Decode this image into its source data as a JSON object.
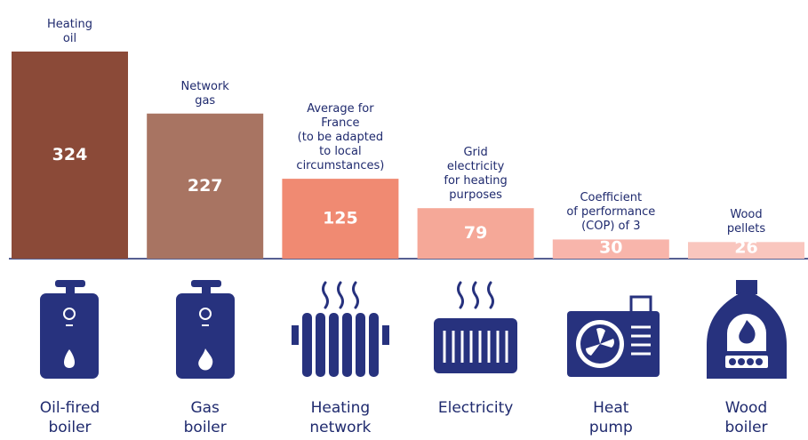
{
  "chart_data": {
    "type": "bar",
    "categories": [
      "Oil-fired\nboiler",
      "Gas\nboiler",
      "Heating\nnetwork",
      "Electricity",
      "Heat\npump",
      "Wood\nboiler"
    ],
    "annotations": [
      "Heating\noil",
      "Network\ngas",
      "Average for\nFrance\n(to be adapted\nto local\ncircumstances)",
      "Grid\nelectricity\nfor heating\npurposes",
      "Coefficient\nof performance\n(COP) of 3",
      "Wood\npellets"
    ],
    "values": [
      324,
      227,
      125,
      79,
      30,
      26
    ],
    "colors": [
      "#8b4a38",
      "#a87462",
      "#f08a72",
      "#f5a898",
      "#f8b5ab",
      "#f9c6be"
    ]
  }
}
